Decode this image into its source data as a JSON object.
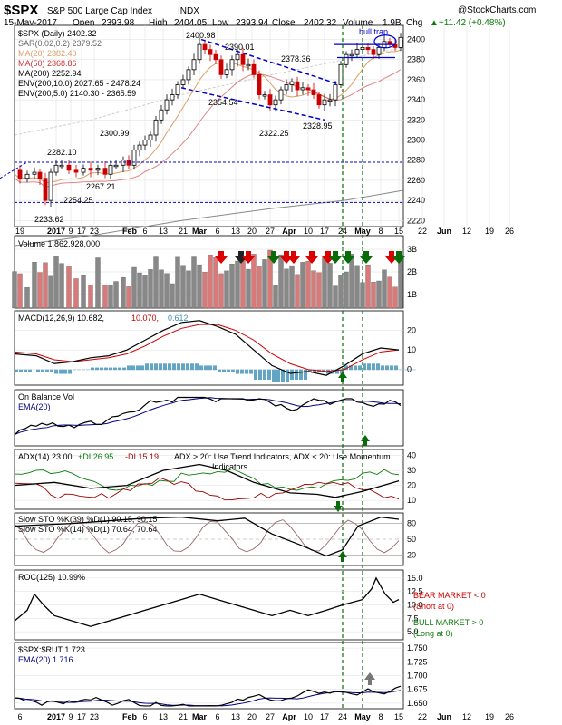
{
  "header": {
    "symbol": "$SPX",
    "name": "S&P 500 Large Cap Index",
    "exchange": "INDX",
    "watermark": "@StockCharts.com",
    "date": "15-May-2017",
    "open_label": "Open",
    "open": "2393.98",
    "high_label": "High",
    "high": "2404.05",
    "low_label": "Low",
    "low": "2393.94",
    "close_label": "Close",
    "close": "2402.32",
    "volume_label": "Volume",
    "volume": "1.9B",
    "chg_label": "Chg",
    "chg": "+11.42 (+0.48%)",
    "chg_arrow": "▲"
  },
  "colors": {
    "up": "#000000",
    "down": "#cc0000",
    "ma20": "#d9a066",
    "ma50": "#cc3333",
    "ma200": "#888888",
    "green_arrow": "#0a6b0a",
    "red_arrow": "#dd0000",
    "macd_hist": "#3c8fb5",
    "grid": "#dddddd"
  },
  "x_axis": {
    "labels_top": [
      "19",
      "2017",
      "9",
      "17",
      "23",
      "Feb",
      "6",
      "13",
      "21",
      "Mar",
      "6",
      "13",
      "20",
      "27",
      "Apr",
      "10",
      "17",
      "24",
      "May",
      "8",
      "15",
      "22",
      "Jun",
      "12",
      "19",
      "26"
    ],
    "labels_bottom": [
      "Feb",
      "6",
      "2017",
      "9",
      "17",
      "23",
      "Feb",
      "6",
      "13",
      "21",
      "Mar",
      "6",
      "13",
      "20",
      "27",
      "Apr",
      "10",
      "17",
      "24",
      "May",
      "8",
      "15",
      "22",
      "Jun",
      "12",
      "19",
      "26"
    ]
  },
  "price_panel": {
    "legend": [
      {
        "text": "$SPX (Daily) 2402.32",
        "color": "#000000"
      },
      {
        "text": "SAR(0.02,0.2) 2379.52",
        "color": "#666666"
      },
      {
        "text": "MA(20) 2382.40",
        "color": "#d9a066"
      },
      {
        "text": "MA(50) 2368.86",
        "color": "#cc3333"
      },
      {
        "text": "MA(200) 2252.94",
        "color": "#000000"
      },
      {
        "text": "ENV(200,10.0) 2027.65 - 2478.24",
        "color": "#000000"
      },
      {
        "text": "ENV(200,5.0) 2140.30 - 2365.59",
        "color": "#000000"
      }
    ],
    "y_ticks": [
      "2400",
      "2380",
      "2360",
      "2340",
      "2320",
      "2300",
      "2280",
      "2260",
      "2240",
      "2220"
    ],
    "annotations": [
      "2400.98",
      "2390.01",
      "2378.36",
      "2354.54",
      "2322.25",
      "2328.95",
      "2300.99",
      "2282.10",
      "2267.21",
      "2254.25",
      "2233.62",
      "bull trap"
    ]
  },
  "volume_panel": {
    "label": "Volume 1,862,928,000",
    "y_ticks": [
      "3B",
      "2B",
      "1B"
    ]
  },
  "macd_panel": {
    "label_black": "MACD(12,26,9) 10.682,",
    "label_red": "10.070,",
    "label_blue": "0.612",
    "y_ticks": [
      "20",
      "10",
      "0"
    ]
  },
  "obv_panel": {
    "label": "On Balance Vol",
    "ema_label": "EMA(20)"
  },
  "adx_panel": {
    "label": "ADX(14) 23.00",
    "plus_di": "+DI 26.95",
    "minus_di": "-DI 15.19",
    "note_line1": "ADX > 20: Use Trend Indicators, ADX < 20: Use Momentum",
    "note_line2": "Indicators",
    "y_ticks": [
      "40",
      "30",
      "20",
      "10"
    ]
  },
  "sto_panel": {
    "label1": "Slow STO %K(39) %D(1) 90.15, 90.15",
    "label2": "Slow STO %K(14) %D(1) 70.64, 70.64",
    "y_ticks": [
      "80",
      "50",
      "20"
    ]
  },
  "roc_panel": {
    "label": "ROC(125) 10.99%",
    "bear_line1": "BEAR MARKET < 0",
    "bear_line2": "(Short at 0)",
    "bull_line1": "BULL MARKET > 0",
    "bull_line2": "(Long at 0)",
    "y_ticks": [
      "15.0",
      "12.5",
      "10.0",
      "7.5",
      "5.0"
    ]
  },
  "ratio_panel": {
    "label": "$SPX:$RUT 1.723",
    "ema_label": "EMA(20) 1.716",
    "y_ticks": [
      "1.750",
      "1.725",
      "1.700",
      "1.675",
      "1.650"
    ]
  }
}
